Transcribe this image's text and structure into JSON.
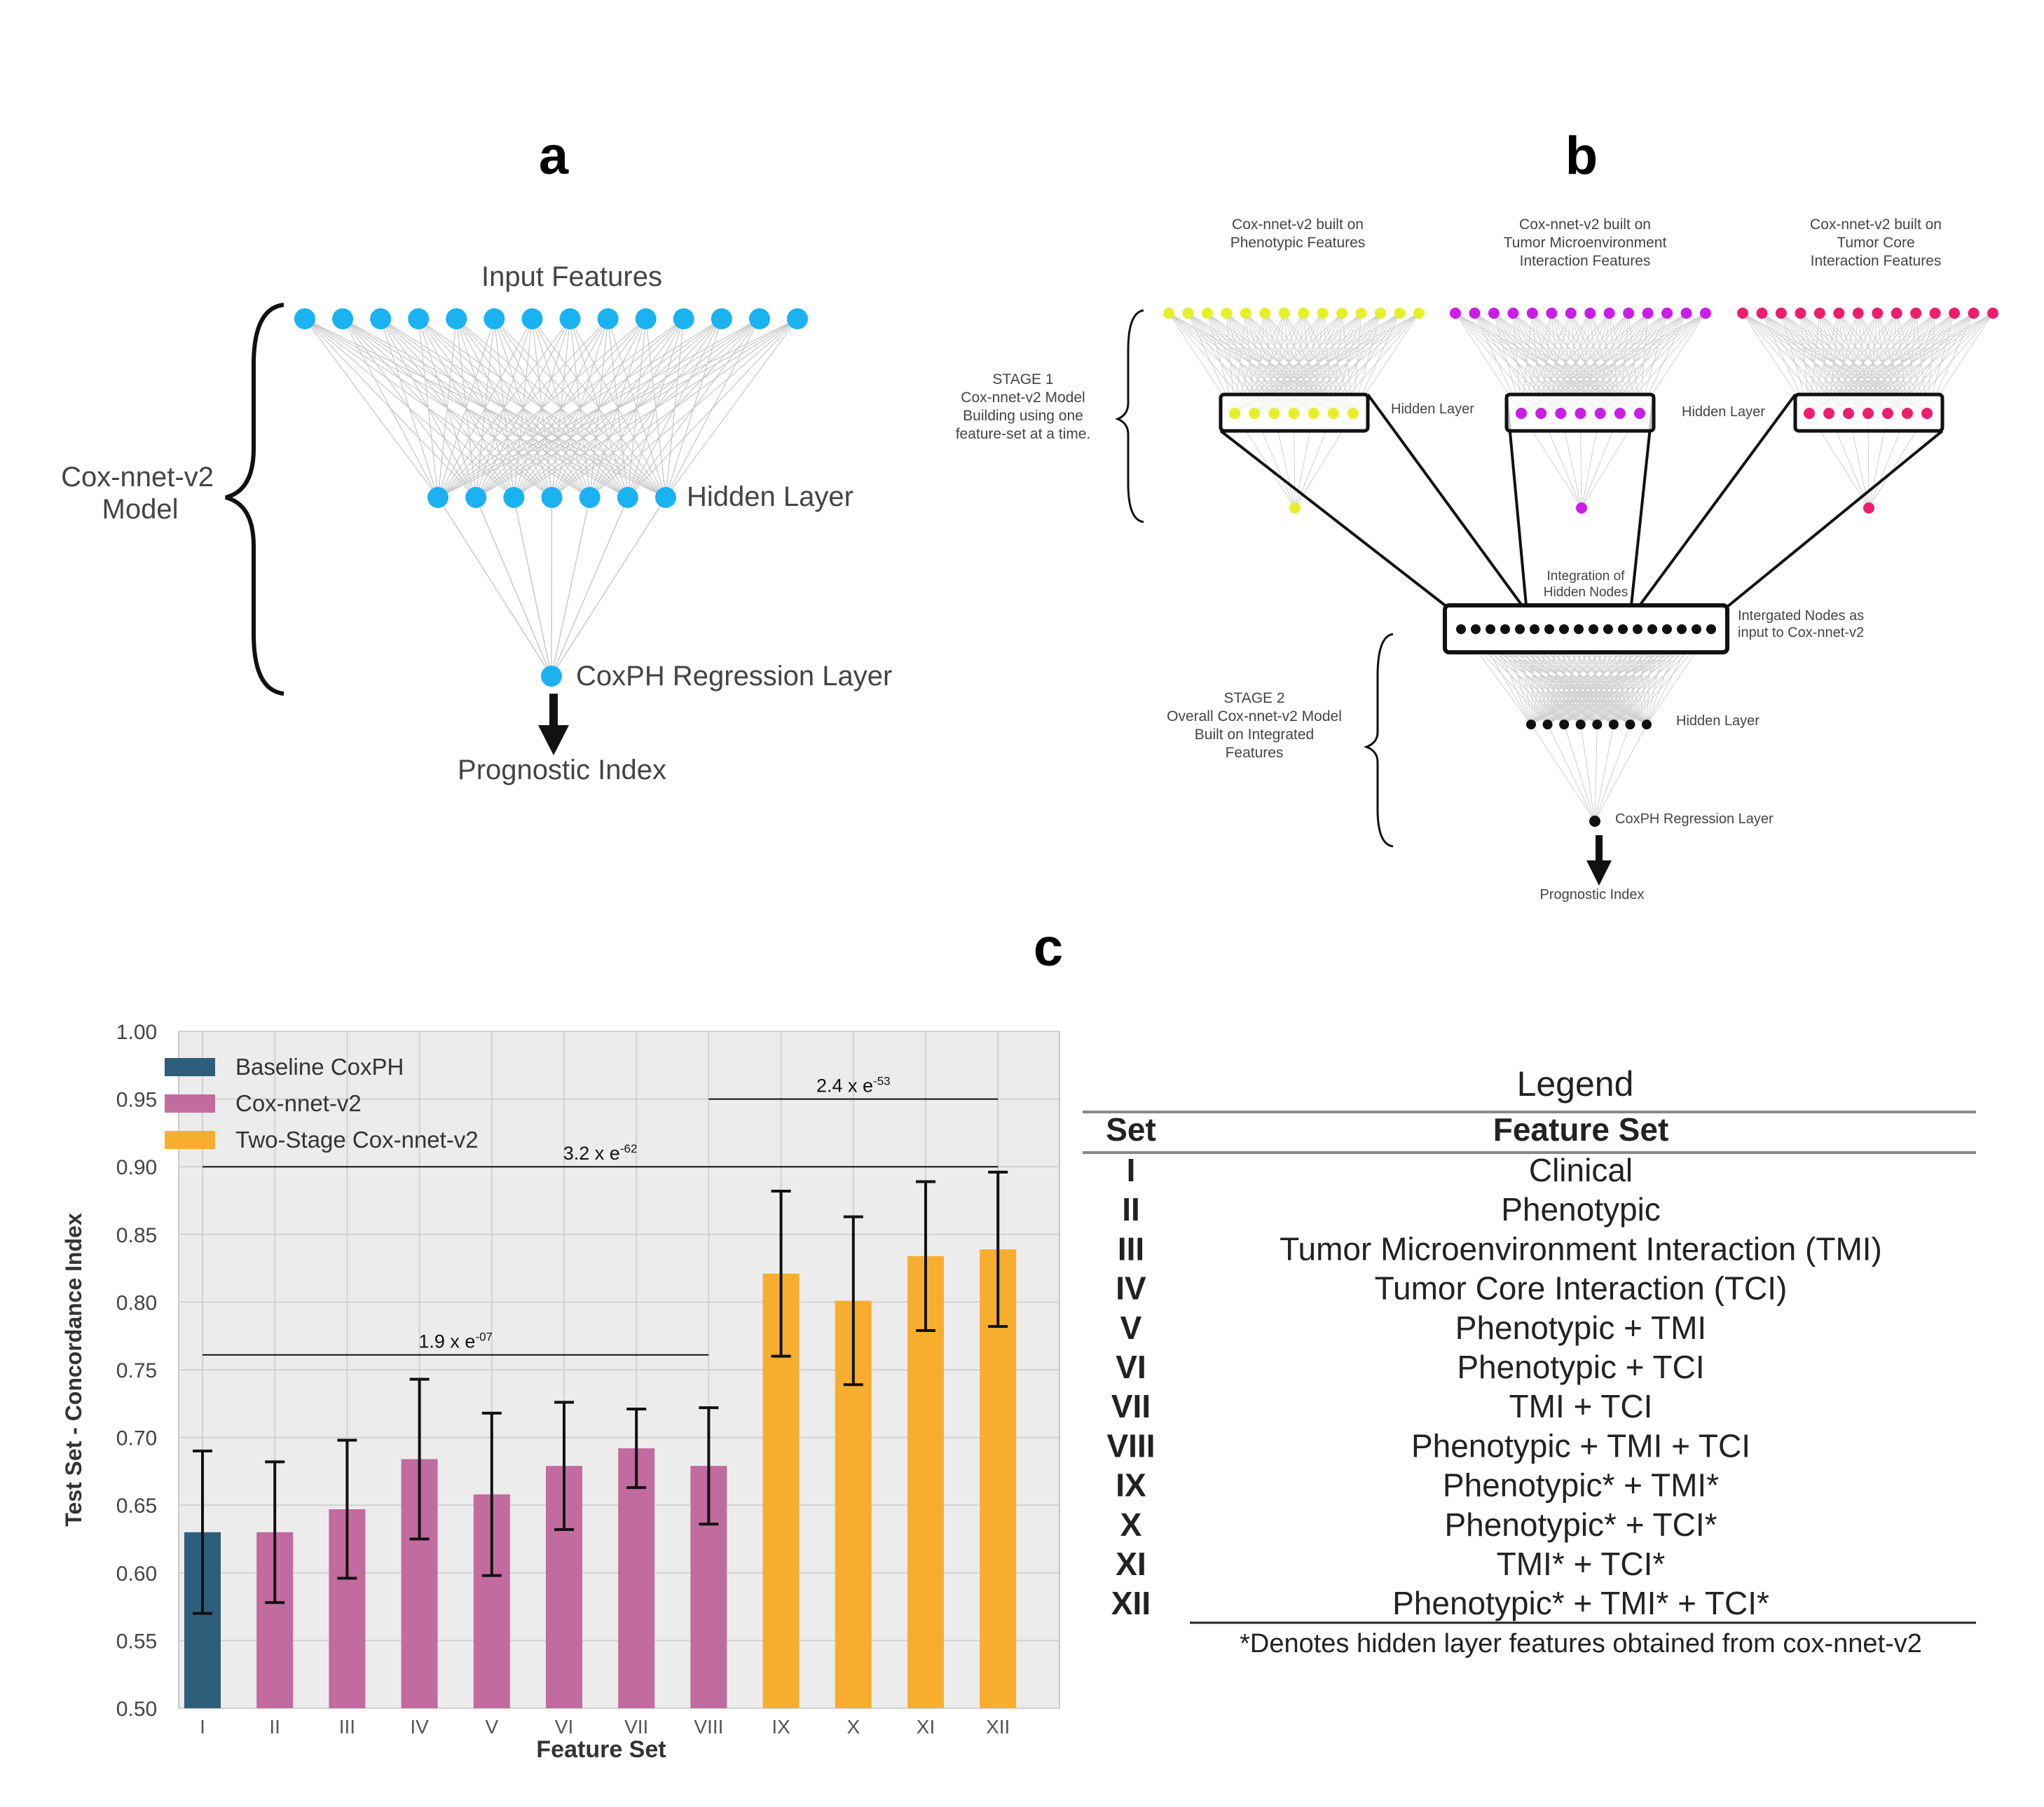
{
  "panels": {
    "a": {
      "letter": "a",
      "input_label": "Input Features",
      "hidden_label": "Hidden Layer",
      "cox_label": "CoxPH Regression Layer",
      "output_label": "Prognostic Index",
      "model_label_1": "Cox-nnet-v2",
      "model_label_2": "Model",
      "node_color": "#1ab2f0",
      "input_nodes": 14,
      "hidden_nodes": 7
    },
    "b": {
      "letter": "b",
      "sub_titles": [
        [
          "Cox-nnet-v2 built on",
          "Phenotypic Features"
        ],
        [
          "Cox-nnet-v2 built on",
          "Tumor Microenvironment",
          "Interaction Features"
        ],
        [
          "Cox-nnet-v2 built on",
          "Tumor Core",
          "Interaction Features"
        ]
      ],
      "sub_colors": [
        "#e6f02a",
        "#c81ee6",
        "#ec1f6e"
      ],
      "hidden_label": "Hidden Layer",
      "stage1": [
        "STAGE 1",
        "Cox-nnet-v2 Model",
        "Building using one",
        "feature-set at a time."
      ],
      "integration": [
        "Integration of",
        "Hidden Nodes"
      ],
      "integrated_nodes": [
        "Intergated Nodes as",
        "input to Cox-nnet-v2"
      ],
      "stage2": [
        "STAGE 2",
        "Overall Cox-nnet-v2 Model",
        "Built on Integrated",
        "Features"
      ],
      "stage2_hidden_label": "Hidden Layer",
      "cox_label": "CoxPH Regression Layer",
      "output_label": "Prognostic Index"
    },
    "c": {
      "letter": "c"
    }
  },
  "chart_data": {
    "type": "bar",
    "xlabel": "Feature Set",
    "ylabel": "Test Set - Concordance Index",
    "ylim": [
      0.5,
      1.0
    ],
    "yticks": [
      "0.50",
      "0.55",
      "0.60",
      "0.65",
      "0.70",
      "0.75",
      "0.80",
      "0.85",
      "0.90",
      "0.95",
      "1.00"
    ],
    "categories": [
      "I",
      "II",
      "III",
      "IV",
      "V",
      "VI",
      "VII",
      "VIII",
      "IX",
      "X",
      "XI",
      "XII"
    ],
    "values": [
      0.63,
      0.63,
      0.647,
      0.684,
      0.658,
      0.679,
      0.692,
      0.679,
      0.821,
      0.801,
      0.834,
      0.839
    ],
    "errors": [
      0.06,
      0.052,
      0.051,
      0.059,
      0.06,
      0.047,
      0.029,
      0.043,
      0.061,
      0.062,
      0.055,
      0.057
    ],
    "bar_series": [
      0,
      1,
      1,
      1,
      1,
      1,
      1,
      1,
      2,
      2,
      2,
      2
    ],
    "series": [
      {
        "name": "Baseline CoxPH",
        "color": "#2d5f7a"
      },
      {
        "name": "Cox-nnet-v2",
        "color": "#c26b9e"
      },
      {
        "name": "Two-Stage Cox-nnet-v2",
        "color": "#f7ae2f"
      }
    ],
    "legend_position": "top-left",
    "grid": true,
    "annotations": [
      {
        "from": "I",
        "to": "VIII",
        "y": 0.761,
        "base": "1.9 x e",
        "exp": "-07"
      },
      {
        "from": "I",
        "to": "XII",
        "y": 0.9,
        "base": "3.2 x e",
        "exp": "-62"
      },
      {
        "from": "VIII",
        "to": "XII",
        "y": 0.95,
        "base": "2.4 x e",
        "exp": "-53"
      }
    ]
  },
  "legend_table": {
    "title": "Legend",
    "header": [
      "Set",
      "Feature Set"
    ],
    "rows": [
      [
        "I",
        "Clinical"
      ],
      [
        "II",
        "Phenotypic"
      ],
      [
        "III",
        "Tumor Microenvironment Interaction (TMI)"
      ],
      [
        "IV",
        "Tumor Core Interaction (TCI)"
      ],
      [
        "V",
        "Phenotypic + TMI"
      ],
      [
        "VI",
        "Phenotypic + TCI"
      ],
      [
        "VII",
        "TMI + TCI"
      ],
      [
        "VIII",
        "Phenotypic + TMI + TCI"
      ],
      [
        "IX",
        "Phenotypic* + TMI*"
      ],
      [
        "X",
        "Phenotypic* + TCI*"
      ],
      [
        "XI",
        "TMI* + TCI*"
      ],
      [
        "XII",
        "Phenotypic* + TMI* + TCI*"
      ]
    ],
    "footnote": "*Denotes hidden layer features obtained from cox-nnet-v2"
  }
}
